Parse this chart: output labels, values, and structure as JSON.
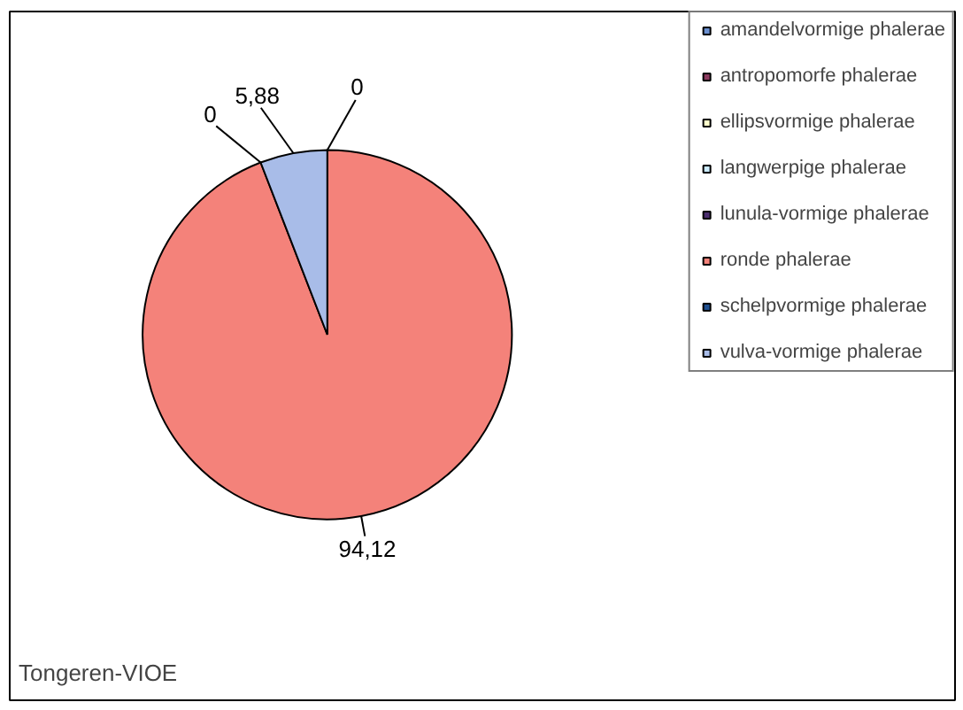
{
  "chart_data": {
    "type": "pie",
    "categories": [
      "amandelvormige phalerae",
      "antropomorfe phalerae",
      "ellipsvormige phalerae",
      "langwerpige phalerae",
      "lunula-vormige phalerae",
      "ronde phalerae",
      "schelpvormige phalerae",
      "vulva-vormige phalerae"
    ],
    "values": [
      0,
      0,
      0,
      0,
      0,
      94.12,
      0,
      5.88
    ],
    "value_labels": [
      "0",
      null,
      null,
      null,
      null,
      "94,12",
      "0",
      "5,88"
    ],
    "colors": [
      "#6a8fd0",
      "#8b3a5e",
      "#ffffcc",
      "#ccecff",
      "#4b2e6e",
      "#f4827a",
      "#1f4f8f",
      "#a8bce8"
    ],
    "legend": "top right",
    "annotations": [
      "Tongeren-VIOE"
    ]
  }
}
